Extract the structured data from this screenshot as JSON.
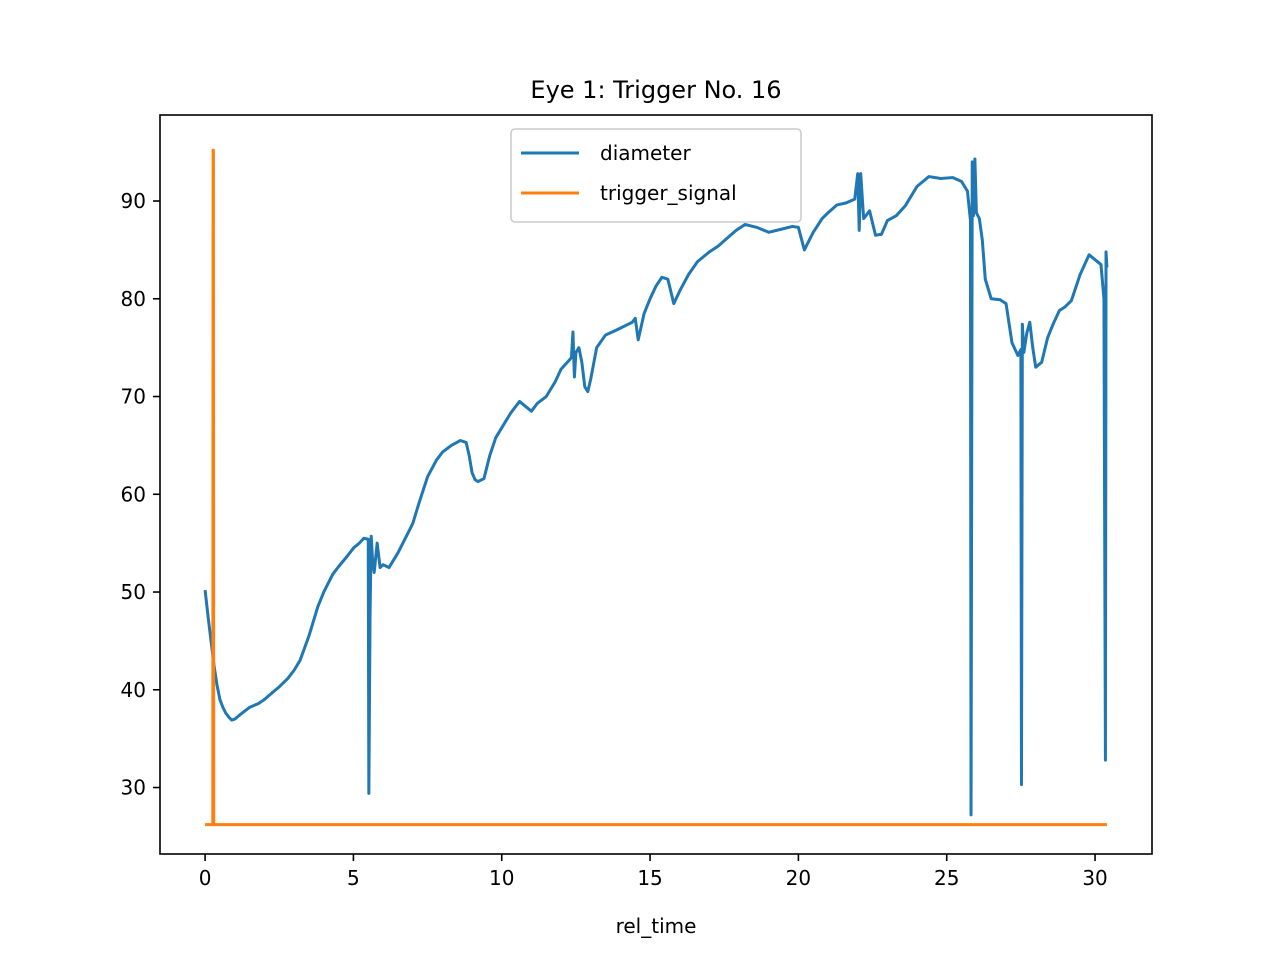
{
  "chart_data": {
    "type": "line",
    "title": "Eye 1: Trigger No. 16",
    "xlabel": "rel_time",
    "ylabel": "",
    "xlim": [
      -1.52,
      31.92
    ],
    "ylim": [
      23.2,
      98.8
    ],
    "xticks": [
      0,
      5,
      10,
      15,
      20,
      25,
      30
    ],
    "yticks": [
      30,
      40,
      50,
      60,
      70,
      80,
      90
    ],
    "grid": false,
    "legend_position": "upper center",
    "series": [
      {
        "name": "diameter",
        "color": "#1f77b4",
        "x": [
          0,
          0.1,
          0.2,
          0.3,
          0.4,
          0.5,
          0.6,
          0.7,
          0.8,
          0.9,
          1.0,
          1.2,
          1.5,
          1.8,
          2.0,
          2.3,
          2.5,
          2.8,
          3.0,
          3.2,
          3.5,
          3.8,
          4.0,
          4.3,
          4.5,
          4.8,
          5.0,
          5.2,
          5.35,
          5.5,
          5.52,
          5.56,
          5.6,
          5.65,
          5.7,
          5.75,
          5.8,
          5.9,
          6.0,
          6.2,
          6.5,
          6.8,
          7.0,
          7.2,
          7.5,
          7.8,
          8.0,
          8.3,
          8.6,
          8.8,
          8.9,
          9.0,
          9.1,
          9.2,
          9.4,
          9.6,
          9.8,
          10.0,
          10.3,
          10.6,
          10.8,
          11.0,
          11.2,
          11.5,
          11.8,
          12.0,
          12.3,
          12.35,
          12.4,
          12.45,
          12.5,
          12.6,
          12.7,
          12.8,
          12.9,
          13.0,
          13.2,
          13.5,
          13.8,
          14.0,
          14.2,
          14.4,
          14.5,
          14.6,
          14.8,
          15.0,
          15.2,
          15.4,
          15.6,
          15.8,
          16.0,
          16.3,
          16.6,
          17.0,
          17.3,
          17.6,
          17.9,
          18.2,
          18.6,
          19.0,
          19.4,
          19.8,
          20.0,
          20.2,
          20.5,
          20.8,
          21.0,
          21.3,
          21.6,
          21.9,
          22.0,
          22.05,
          22.1,
          22.2,
          22.4,
          22.6,
          22.8,
          23.0,
          23.3,
          23.6,
          24.0,
          24.4,
          24.8,
          25.2,
          25.5,
          25.7,
          25.8,
          25.82,
          25.86,
          25.9,
          25.95,
          26.0,
          26.1,
          26.2,
          26.3,
          26.5,
          26.8,
          27.0,
          27.2,
          27.4,
          27.5,
          27.52,
          27.55,
          27.6,
          27.7,
          27.8,
          27.9,
          28.0,
          28.2,
          28.4,
          28.6,
          28.8,
          29.0,
          29.2,
          29.5,
          29.8,
          30.0,
          30.2,
          30.3,
          30.35,
          30.37,
          30.4
        ],
        "values": [
          50.2,
          47.5,
          45.0,
          42.5,
          40.5,
          39.0,
          38.2,
          37.6,
          37.2,
          36.9,
          37.0,
          37.5,
          38.2,
          38.6,
          39.0,
          39.8,
          40.3,
          41.2,
          42.0,
          43.0,
          45.5,
          48.5,
          50.0,
          51.8,
          52.6,
          53.7,
          54.5,
          55.0,
          55.5,
          55.4,
          29.4,
          47.5,
          55.7,
          53.0,
          52.0,
          53.5,
          55.0,
          52.5,
          52.8,
          52.5,
          54.0,
          55.8,
          57.0,
          59.0,
          61.8,
          63.5,
          64.3,
          65.0,
          65.5,
          65.3,
          64.0,
          62.2,
          61.5,
          61.3,
          61.6,
          64.0,
          65.8,
          66.8,
          68.3,
          69.5,
          69.0,
          68.5,
          69.3,
          70.0,
          71.5,
          72.8,
          73.8,
          74.0,
          76.6,
          72.0,
          74.5,
          75.0,
          73.5,
          71.0,
          70.5,
          71.8,
          75.0,
          76.3,
          76.7,
          77.0,
          77.3,
          77.6,
          78.0,
          75.8,
          78.5,
          80.0,
          81.3,
          82.2,
          82.0,
          79.5,
          80.8,
          82.5,
          83.8,
          84.8,
          85.4,
          86.2,
          87.0,
          87.6,
          87.3,
          86.8,
          87.1,
          87.4,
          87.3,
          85.0,
          86.8,
          88.2,
          88.8,
          89.6,
          89.8,
          90.2,
          92.8,
          87.0,
          92.8,
          88.2,
          89.0,
          86.5,
          86.6,
          88.0,
          88.5,
          89.5,
          91.5,
          92.5,
          92.3,
          92.4,
          92.0,
          91.0,
          88.0,
          27.2,
          94.0,
          88.5,
          94.3,
          88.8,
          88.2,
          86.0,
          82.0,
          80.0,
          79.9,
          79.5,
          75.5,
          74.2,
          74.8,
          30.3,
          77.4,
          74.5,
          76.5,
          77.6,
          75.0,
          73.0,
          73.5,
          76.0,
          77.5,
          78.8,
          79.2,
          79.8,
          82.5,
          84.5,
          84.0,
          83.5,
          80.0,
          32.8,
          84.8,
          83.2
        ]
      },
      {
        "name": "trigger_signal",
        "color": "#ff7f0e",
        "x": [
          0,
          0.25,
          0.26,
          0.27,
          0.28,
          0.29,
          0.3,
          30.4
        ],
        "values": [
          26.2,
          26.2,
          26.2,
          95.2,
          95.2,
          26.2,
          26.2,
          26.2
        ]
      }
    ]
  }
}
